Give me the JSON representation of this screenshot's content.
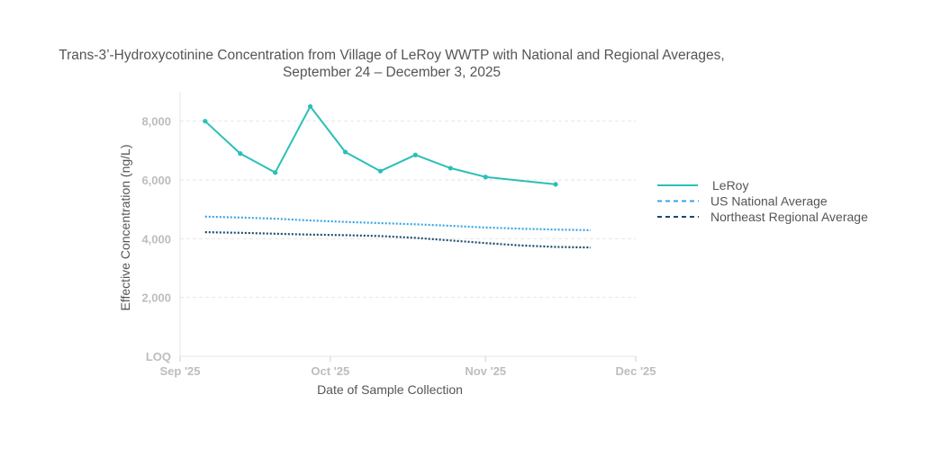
{
  "chart_data": {
    "type": "line",
    "title_line1": "Trans-3’-Hydroxycotinine Concentration from Village of LeRoy WWTP with National and Regional Averages,",
    "title_line2": "September 24 – December 3, 2025",
    "xlabel": "Date of Sample Collection",
    "ylabel": "Effective Concentration (ng/L)",
    "ylim": [
      0,
      9000
    ],
    "xlim_days": [
      0,
      91
    ],
    "x_ticks": [
      {
        "label": "Sep '25",
        "day": 0
      },
      {
        "label": "Oct '25",
        "day": 30
      },
      {
        "label": "Nov '25",
        "day": 61
      },
      {
        "label": "Dec '25",
        "day": 91
      }
    ],
    "y_ticks": [
      {
        "label": "LOQ",
        "value": 0
      },
      {
        "label": "2,000",
        "value": 2000
      },
      {
        "label": "4,000",
        "value": 4000
      },
      {
        "label": "6,000",
        "value": 6000
      },
      {
        "label": "8,000",
        "value": 8000
      }
    ],
    "grid": true,
    "legend_position": "right",
    "series": [
      {
        "name": "LeRoy",
        "style": "solid",
        "color": "#2bbfb8",
        "markers": true,
        "days": [
          5,
          12,
          19,
          26,
          33,
          40,
          47,
          54,
          61,
          75
        ],
        "values": [
          8000,
          6900,
          6250,
          8500,
          6950,
          6300,
          6850,
          6400,
          6100,
          5850
        ]
      },
      {
        "name": "US National Average",
        "style": "dotted",
        "color": "#3aa3e3",
        "markers": false,
        "days": [
          5,
          12,
          19,
          26,
          33,
          40,
          47,
          54,
          61,
          68,
          75,
          82
        ],
        "values": [
          4750,
          4720,
          4680,
          4620,
          4570,
          4530,
          4490,
          4440,
          4380,
          4340,
          4310,
          4290
        ]
      },
      {
        "name": "Northeast Regional Average",
        "style": "dotted",
        "color": "#1b4a6b",
        "markers": false,
        "days": [
          5,
          12,
          19,
          26,
          33,
          40,
          47,
          54,
          61,
          68,
          75,
          82
        ],
        "values": [
          4220,
          4200,
          4170,
          4140,
          4120,
          4090,
          4030,
          3940,
          3850,
          3770,
          3720,
          3700
        ]
      }
    ]
  }
}
